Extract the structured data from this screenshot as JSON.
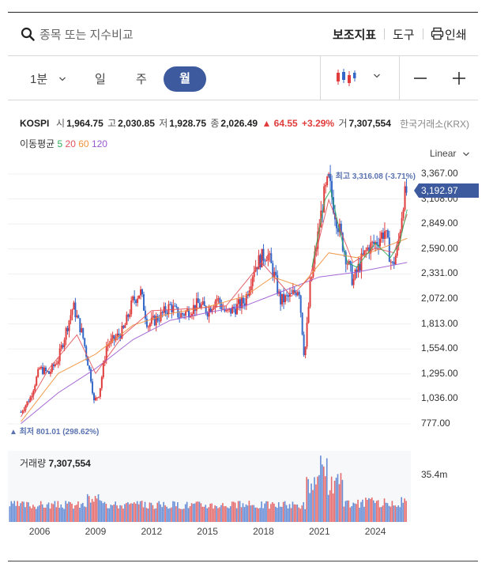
{
  "topbar": {
    "search_placeholder": "종목 또는 지수비교",
    "indicators_label": "보조지표",
    "tools_label": "도구",
    "print_label": "인쇄"
  },
  "periods": {
    "minute": "1분",
    "day": "일",
    "week": "주",
    "month": "월",
    "active": "월"
  },
  "quote": {
    "symbol": "KOSPI",
    "open_label": "시",
    "open": "1,964.75",
    "high_label": "고",
    "high": "2,030.85",
    "low_label": "저",
    "low": "1,928.75",
    "close_label": "종",
    "close": "2,026.49",
    "change": "▲ 64.55",
    "change_pct": "+3.29%",
    "volume_label": "거",
    "volume": "7,307,554",
    "exchange": "한국거래소(KRX)"
  },
  "moving_average": {
    "label": "이동평균",
    "periods": [
      "5",
      "20",
      "60",
      "120"
    ],
    "colors": [
      "#2fae5a",
      "#e0525b",
      "#f0923c",
      "#9b59d0"
    ]
  },
  "scale": {
    "label": "Linear"
  },
  "colors": {
    "up": "#e03c3c",
    "down": "#3569c9",
    "accent": "#3d5a9e"
  },
  "chart_data": {
    "type": "line",
    "series_type": "candlestick",
    "y_ticks": [
      "3,367.00",
      "3,108.00",
      "2,849.00",
      "2,590.00",
      "2,331.00",
      "2,072.00",
      "1,813.00",
      "1,554.00",
      "1,295.00",
      "1,036.00",
      "777.00"
    ],
    "ylim": [
      777,
      3367
    ],
    "x_ticks": [
      "2006",
      "2009",
      "2012",
      "2015",
      "2018",
      "2021",
      "2024"
    ],
    "current_price": "3,192.97",
    "high_annotation": "▼ 최고 3,316.08 (-3.71%)",
    "low_annotation": "▲ 최저 801.01 (298.62%)",
    "price_points": [
      [
        2005.0,
        900
      ],
      [
        2005.5,
        1050
      ],
      [
        2006.0,
        1350
      ],
      [
        2006.5,
        1300
      ],
      [
        2007.0,
        1450
      ],
      [
        2007.5,
        1800
      ],
      [
        2007.8,
        2000
      ],
      [
        2008.3,
        1700
      ],
      [
        2008.8,
        1200
      ],
      [
        2008.9,
        1000
      ],
      [
        2009.2,
        1100
      ],
      [
        2009.6,
        1600
      ],
      [
        2010.0,
        1650
      ],
      [
        2010.5,
        1750
      ],
      [
        2011.0,
        2050
      ],
      [
        2011.4,
        2150
      ],
      [
        2011.8,
        1800
      ],
      [
        2012.5,
        1900
      ],
      [
        2013.0,
        2000
      ],
      [
        2013.5,
        1900
      ],
      [
        2014.0,
        1950
      ],
      [
        2014.5,
        2020
      ],
      [
        2015.0,
        1950
      ],
      [
        2015.5,
        2080
      ],
      [
        2016.0,
        1920
      ],
      [
        2016.5,
        1980
      ],
      [
        2017.0,
        2050
      ],
      [
        2017.5,
        2400
      ],
      [
        2017.9,
        2500
      ],
      [
        2018.2,
        2550
      ],
      [
        2018.6,
        2300
      ],
      [
        2018.9,
        2050
      ],
      [
        2019.5,
        2100
      ],
      [
        2019.9,
        2200
      ],
      [
        2020.2,
        1450
      ],
      [
        2020.5,
        2200
      ],
      [
        2020.9,
        2700
      ],
      [
        2021.2,
        3100
      ],
      [
        2021.5,
        3300
      ],
      [
        2021.8,
        3000
      ],
      [
        2022.3,
        2600
      ],
      [
        2022.8,
        2250
      ],
      [
        2023.2,
        2450
      ],
      [
        2023.6,
        2600
      ],
      [
        2024.0,
        2650
      ],
      [
        2024.5,
        2780
      ],
      [
        2024.9,
        2400
      ],
      [
        2025.2,
        2600
      ],
      [
        2025.5,
        3100
      ],
      [
        2025.7,
        3193
      ]
    ],
    "ma120_points": [
      [
        2005.0,
        780
      ],
      [
        2007.0,
        1100
      ],
      [
        2009.0,
        1350
      ],
      [
        2011.0,
        1650
      ],
      [
        2013.0,
        1850
      ],
      [
        2015.0,
        1930
      ],
      [
        2017.0,
        2000
      ],
      [
        2019.0,
        2150
      ],
      [
        2021.0,
        2300
      ],
      [
        2023.0,
        2350
      ],
      [
        2025.7,
        2450
      ]
    ],
    "ma60_points": [
      [
        2005.0,
        800
      ],
      [
        2007.0,
        1300
      ],
      [
        2009.0,
        1500
      ],
      [
        2011.0,
        1800
      ],
      [
        2013.0,
        1920
      ],
      [
        2015.0,
        1990
      ],
      [
        2017.0,
        2100
      ],
      [
        2018.5,
        2300
      ],
      [
        2020.0,
        2200
      ],
      [
        2021.5,
        2550
      ],
      [
        2023.0,
        2500
      ],
      [
        2025.7,
        2700
      ]
    ],
    "ma20_points": [
      [
        2005.0,
        850
      ],
      [
        2006.5,
        1350
      ],
      [
        2008.0,
        1700
      ],
      [
        2009.0,
        1300
      ],
      [
        2010.5,
        1700
      ],
      [
        2012.0,
        1950
      ],
      [
        2014.0,
        1970
      ],
      [
        2016.0,
        2000
      ],
      [
        2017.9,
        2450
      ],
      [
        2019.5,
        2100
      ],
      [
        2020.5,
        2300
      ],
      [
        2021.5,
        3100
      ],
      [
        2022.8,
        2450
      ],
      [
        2024.0,
        2600
      ],
      [
        2025.0,
        2550
      ],
      [
        2025.7,
        2950
      ]
    ],
    "ma5_points": [
      [
        2020.6,
        2400
      ],
      [
        2021.3,
        3100
      ],
      [
        2021.6,
        3200
      ],
      [
        2022.0,
        2850
      ],
      [
        2022.5,
        2450
      ],
      [
        2023.0,
        2400
      ],
      [
        2024.0,
        2650
      ],
      [
        2024.8,
        2500
      ],
      [
        2025.3,
        2650
      ],
      [
        2025.7,
        3000
      ]
    ],
    "volume": {
      "label": "거래량",
      "value": "7,307,554",
      "tick": "35.4m"
    }
  }
}
